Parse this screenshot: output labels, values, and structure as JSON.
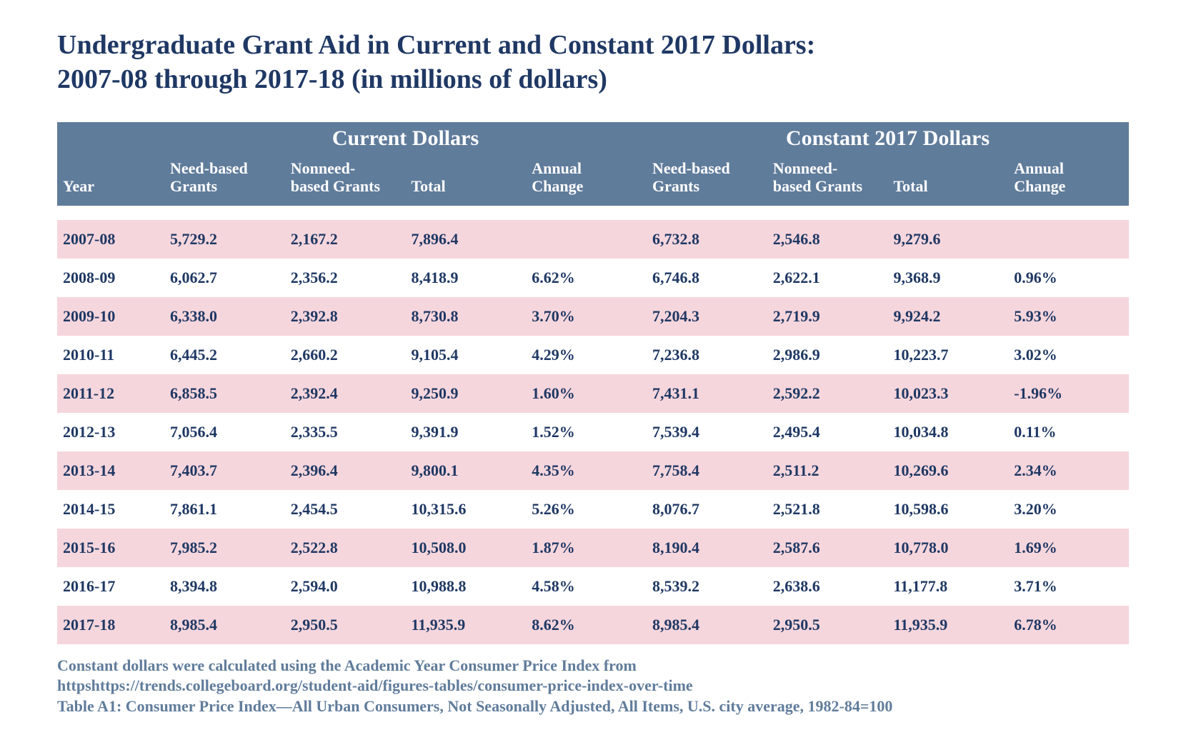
{
  "title_line1": "Undergraduate Grant Aid in Current and Constant 2017 Dollars:",
  "title_line2": "2007-08 through 2017-18 (in millions of dollars)",
  "colors": {
    "header_bg": "#607c9b",
    "header_text": "#ffffff",
    "row_odd_bg": "#f6d6dd",
    "row_even_bg": "#ffffff",
    "text": "#1f3864",
    "footnote_text": "#607c9b",
    "page_bg": "#ffffff"
  },
  "typography": {
    "title_fontsize_pt": 28,
    "group_header_fontsize_pt": 22,
    "sub_header_fontsize_pt": 16,
    "cell_fontsize_pt": 16,
    "footnote_fontsize_pt": 16,
    "font_family": "Times New Roman",
    "weight": "bold"
  },
  "table": {
    "type": "table",
    "group_headers": {
      "left_blank": "",
      "current": "Current Dollars",
      "constant": "Constant 2017 Dollars"
    },
    "columns": [
      "Year",
      "Need-based Grants",
      "Nonneed-based Grants",
      "Total",
      "Annual Change",
      "Need-based Grants",
      "Nonneed-based Grants",
      "Total",
      "Annual Change"
    ],
    "column_line_breaks": {
      "1": [
        "Need-based",
        "Grants"
      ],
      "2": [
        "Nonneed-",
        "based Grants"
      ],
      "4": [
        "Annual",
        "Change"
      ],
      "5": [
        "Need-based",
        "Grants"
      ],
      "6": [
        "Nonneed-",
        "based Grants"
      ],
      "8": [
        "Annual",
        "Change"
      ]
    },
    "rows": [
      [
        "2007-08",
        "5,729.2",
        "2,167.2",
        "7,896.4",
        "",
        "6,732.8",
        "2,546.8",
        "9,279.6",
        ""
      ],
      [
        "2008-09",
        "6,062.7",
        "2,356.2",
        "8,418.9",
        "6.62%",
        "6,746.8",
        "2,622.1",
        "9,368.9",
        "0.96%"
      ],
      [
        "2009-10",
        "6,338.0",
        "2,392.8",
        "8,730.8",
        "3.70%",
        "7,204.3",
        "2,719.9",
        "9,924.2",
        "5.93%"
      ],
      [
        "2010-11",
        "6,445.2",
        "2,660.2",
        "9,105.4",
        "4.29%",
        "7,236.8",
        "2,986.9",
        "10,223.7",
        "3.02%"
      ],
      [
        "2011-12",
        "6,858.5",
        "2,392.4",
        "9,250.9",
        "1.60%",
        "7,431.1",
        "2,592.2",
        "10,023.3",
        "-1.96%"
      ],
      [
        "2012-13",
        "7,056.4",
        "2,335.5",
        "9,391.9",
        "1.52%",
        "7,539.4",
        "2,495.4",
        "10,034.8",
        "0.11%"
      ],
      [
        "2013-14",
        "7,403.7",
        "2,396.4",
        "9,800.1",
        "4.35%",
        "7,758.4",
        "2,511.2",
        "10,269.6",
        "2.34%"
      ],
      [
        "2014-15",
        "7,861.1",
        "2,454.5",
        "10,315.6",
        "5.26%",
        "8,076.7",
        "2,521.8",
        "10,598.6",
        "3.20%"
      ],
      [
        "2015-16",
        "7,985.2",
        "2,522.8",
        "10,508.0",
        "1.87%",
        "8,190.4",
        "2,587.6",
        "10,778.0",
        "1.69%"
      ],
      [
        "2016-17",
        "8,394.8",
        "2,594.0",
        "10,988.8",
        "4.58%",
        "8,539.2",
        "2,638.6",
        "11,177.8",
        "3.71%"
      ],
      [
        "2017-18",
        "8,985.4",
        "2,950.5",
        "11,935.9",
        "8.62%",
        "8,985.4",
        "2,950.5",
        "11,935.9",
        "6.78%"
      ]
    ]
  },
  "footnote": {
    "line1": "Constant dollars were calculated using the Academic Year Consumer Price Index from",
    "line2": "httpshttps://trends.collegeboard.org/student-aid/figures-tables/consumer-price-index-over-time",
    "line3": "Table A1: Consumer Price Index—All Urban Consumers, Not Seasonally Adjusted, All Items, U.S. city average, 1982-84=100"
  }
}
